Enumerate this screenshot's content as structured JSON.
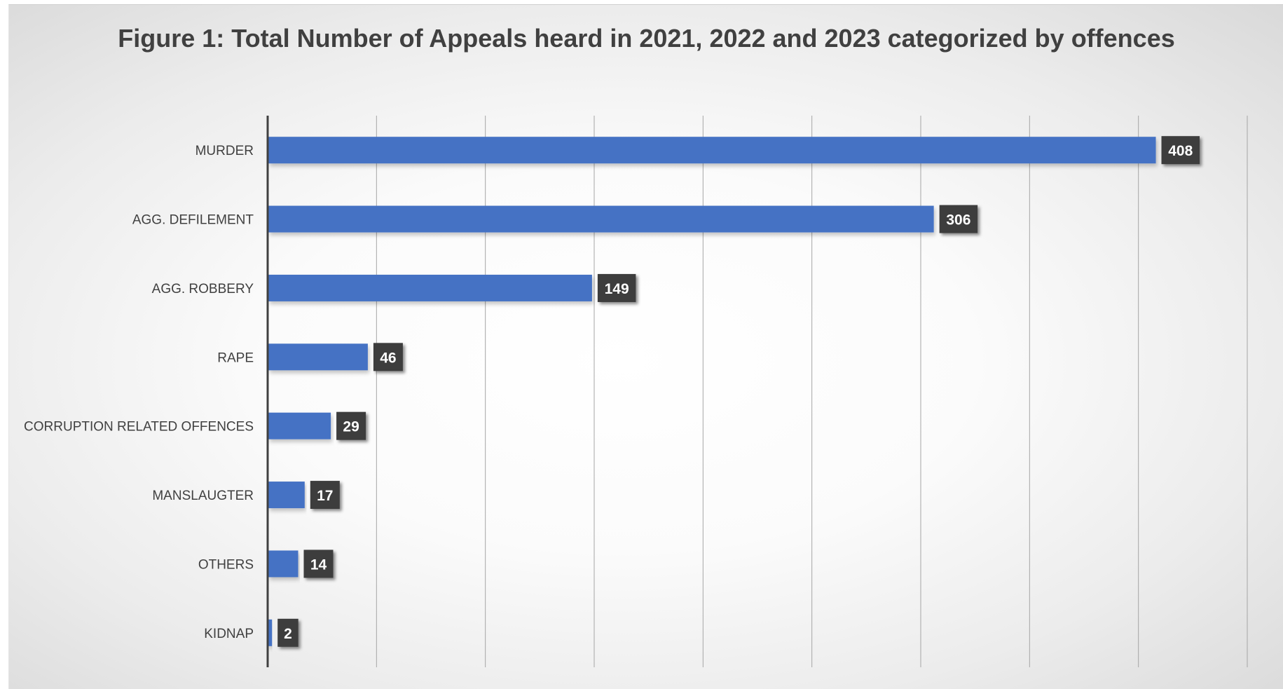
{
  "chart_data": {
    "type": "bar",
    "orientation": "horizontal",
    "title": "Figure 1: Total Number of Appeals heard in 2021, 2022 and 2023 categorized by offences",
    "xlabel": "",
    "ylabel": "",
    "categories": [
      "MURDER",
      "AGG. DEFILEMENT",
      "AGG. ROBBERY",
      "RAPE",
      "CORRUPTION RELATED OFFENCES",
      "MANSLAUGTER",
      "OTHERS",
      "KIDNAP"
    ],
    "values": [
      408,
      306,
      149,
      46,
      29,
      17,
      14,
      2
    ],
    "xlim": [
      0,
      450
    ],
    "grid": "vertical",
    "data_labels": true,
    "legend": "none",
    "colors": {
      "bar": "#4472C4",
      "label_box": "#3d3d3d",
      "gridline": "#a6a6a6"
    }
  }
}
